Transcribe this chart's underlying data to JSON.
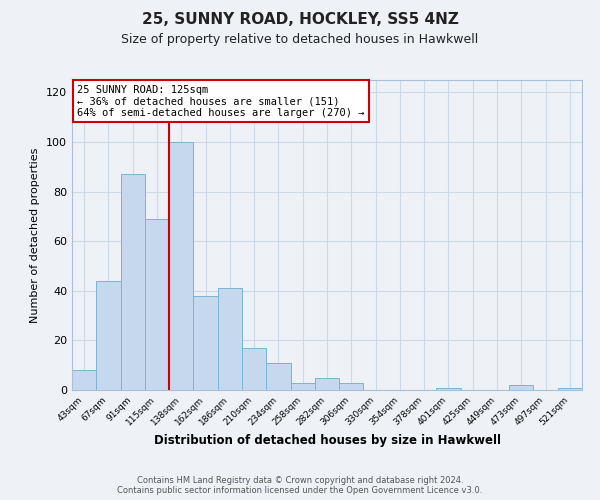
{
  "title": "25, SUNNY ROAD, HOCKLEY, SS5 4NZ",
  "subtitle": "Size of property relative to detached houses in Hawkwell",
  "xlabel": "Distribution of detached houses by size in Hawkwell",
  "ylabel": "Number of detached properties",
  "bin_labels": [
    "43sqm",
    "67sqm",
    "91sqm",
    "115sqm",
    "138sqm",
    "162sqm",
    "186sqm",
    "210sqm",
    "234sqm",
    "258sqm",
    "282sqm",
    "306sqm",
    "330sqm",
    "354sqm",
    "378sqm",
    "401sqm",
    "425sqm",
    "449sqm",
    "473sqm",
    "497sqm",
    "521sqm"
  ],
  "bar_heights": [
    8,
    44,
    87,
    69,
    100,
    38,
    41,
    17,
    11,
    3,
    5,
    3,
    0,
    0,
    0,
    1,
    0,
    0,
    2,
    0,
    1
  ],
  "bar_color": "#c5d8ed",
  "bar_edge_color": "#7ab4d4",
  "ylim": [
    0,
    125
  ],
  "yticks": [
    0,
    20,
    40,
    60,
    80,
    100,
    120
  ],
  "property_line_x": 3.5,
  "annotation_title": "25 SUNNY ROAD: 125sqm",
  "annotation_line1": "← 36% of detached houses are smaller (151)",
  "annotation_line2": "64% of semi-detached houses are larger (270) →",
  "annotation_box_facecolor": "#ffffff",
  "annotation_box_edgecolor": "#cc0000",
  "grid_color": "#ccd9e8",
  "background_color": "#eef2f7",
  "footer_line1": "Contains HM Land Registry data © Crown copyright and database right 2024.",
  "footer_line2": "Contains public sector information licensed under the Open Government Licence v3.0."
}
